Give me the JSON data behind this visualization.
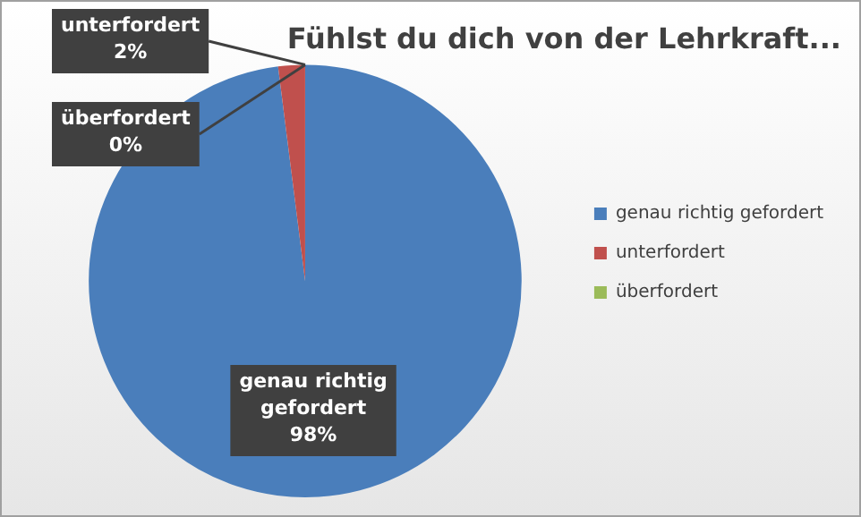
{
  "chart_data": {
    "type": "pie",
    "title": "Fühlst du dich von der Lehrkraft...",
    "categories": [
      "genau richtig gefordert",
      "unterfordert",
      "überfordert"
    ],
    "values": [
      98,
      2,
      0
    ],
    "colors": [
      "#4a7ebb",
      "#c0504d",
      "#9bbb59"
    ],
    "value_labels": [
      "98%",
      "2%",
      "0%"
    ],
    "legend": "right"
  }
}
